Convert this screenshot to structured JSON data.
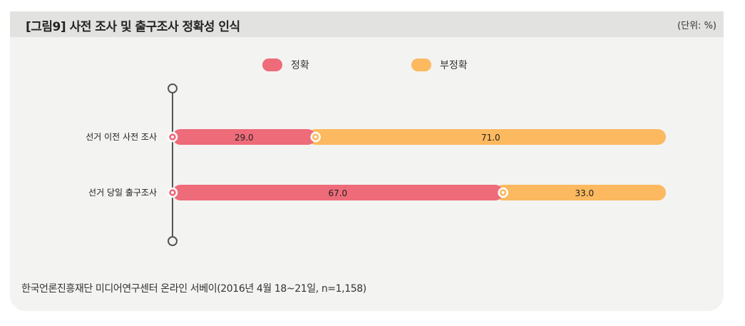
{
  "header": {
    "title": "[그림9] 사전 조사 및 출구조사 정확성 인식",
    "unit": "(단위: %)"
  },
  "source": "한국언론진흥재단 미디어연구센터 온라인 서베이(2016년 4월 18~21일, n=1,158)",
  "chart_data": {
    "type": "bar",
    "orientation": "horizontal",
    "stacked": true,
    "categories": [
      "선거 이전 사전 조사",
      "선거 당일 출구조사"
    ],
    "series": [
      {
        "name": "정확",
        "values": [
          29.0,
          67.0
        ],
        "color": "#ee6b7a"
      },
      {
        "name": "부정확",
        "values": [
          71.0,
          33.0
        ],
        "color": "#fcb95f"
      }
    ],
    "value_labels": [
      [
        "29.0",
        "71.0"
      ],
      [
        "67.0",
        "33.0"
      ]
    ],
    "xlim": [
      0,
      100
    ],
    "legend_position": "top",
    "grid": false
  }
}
